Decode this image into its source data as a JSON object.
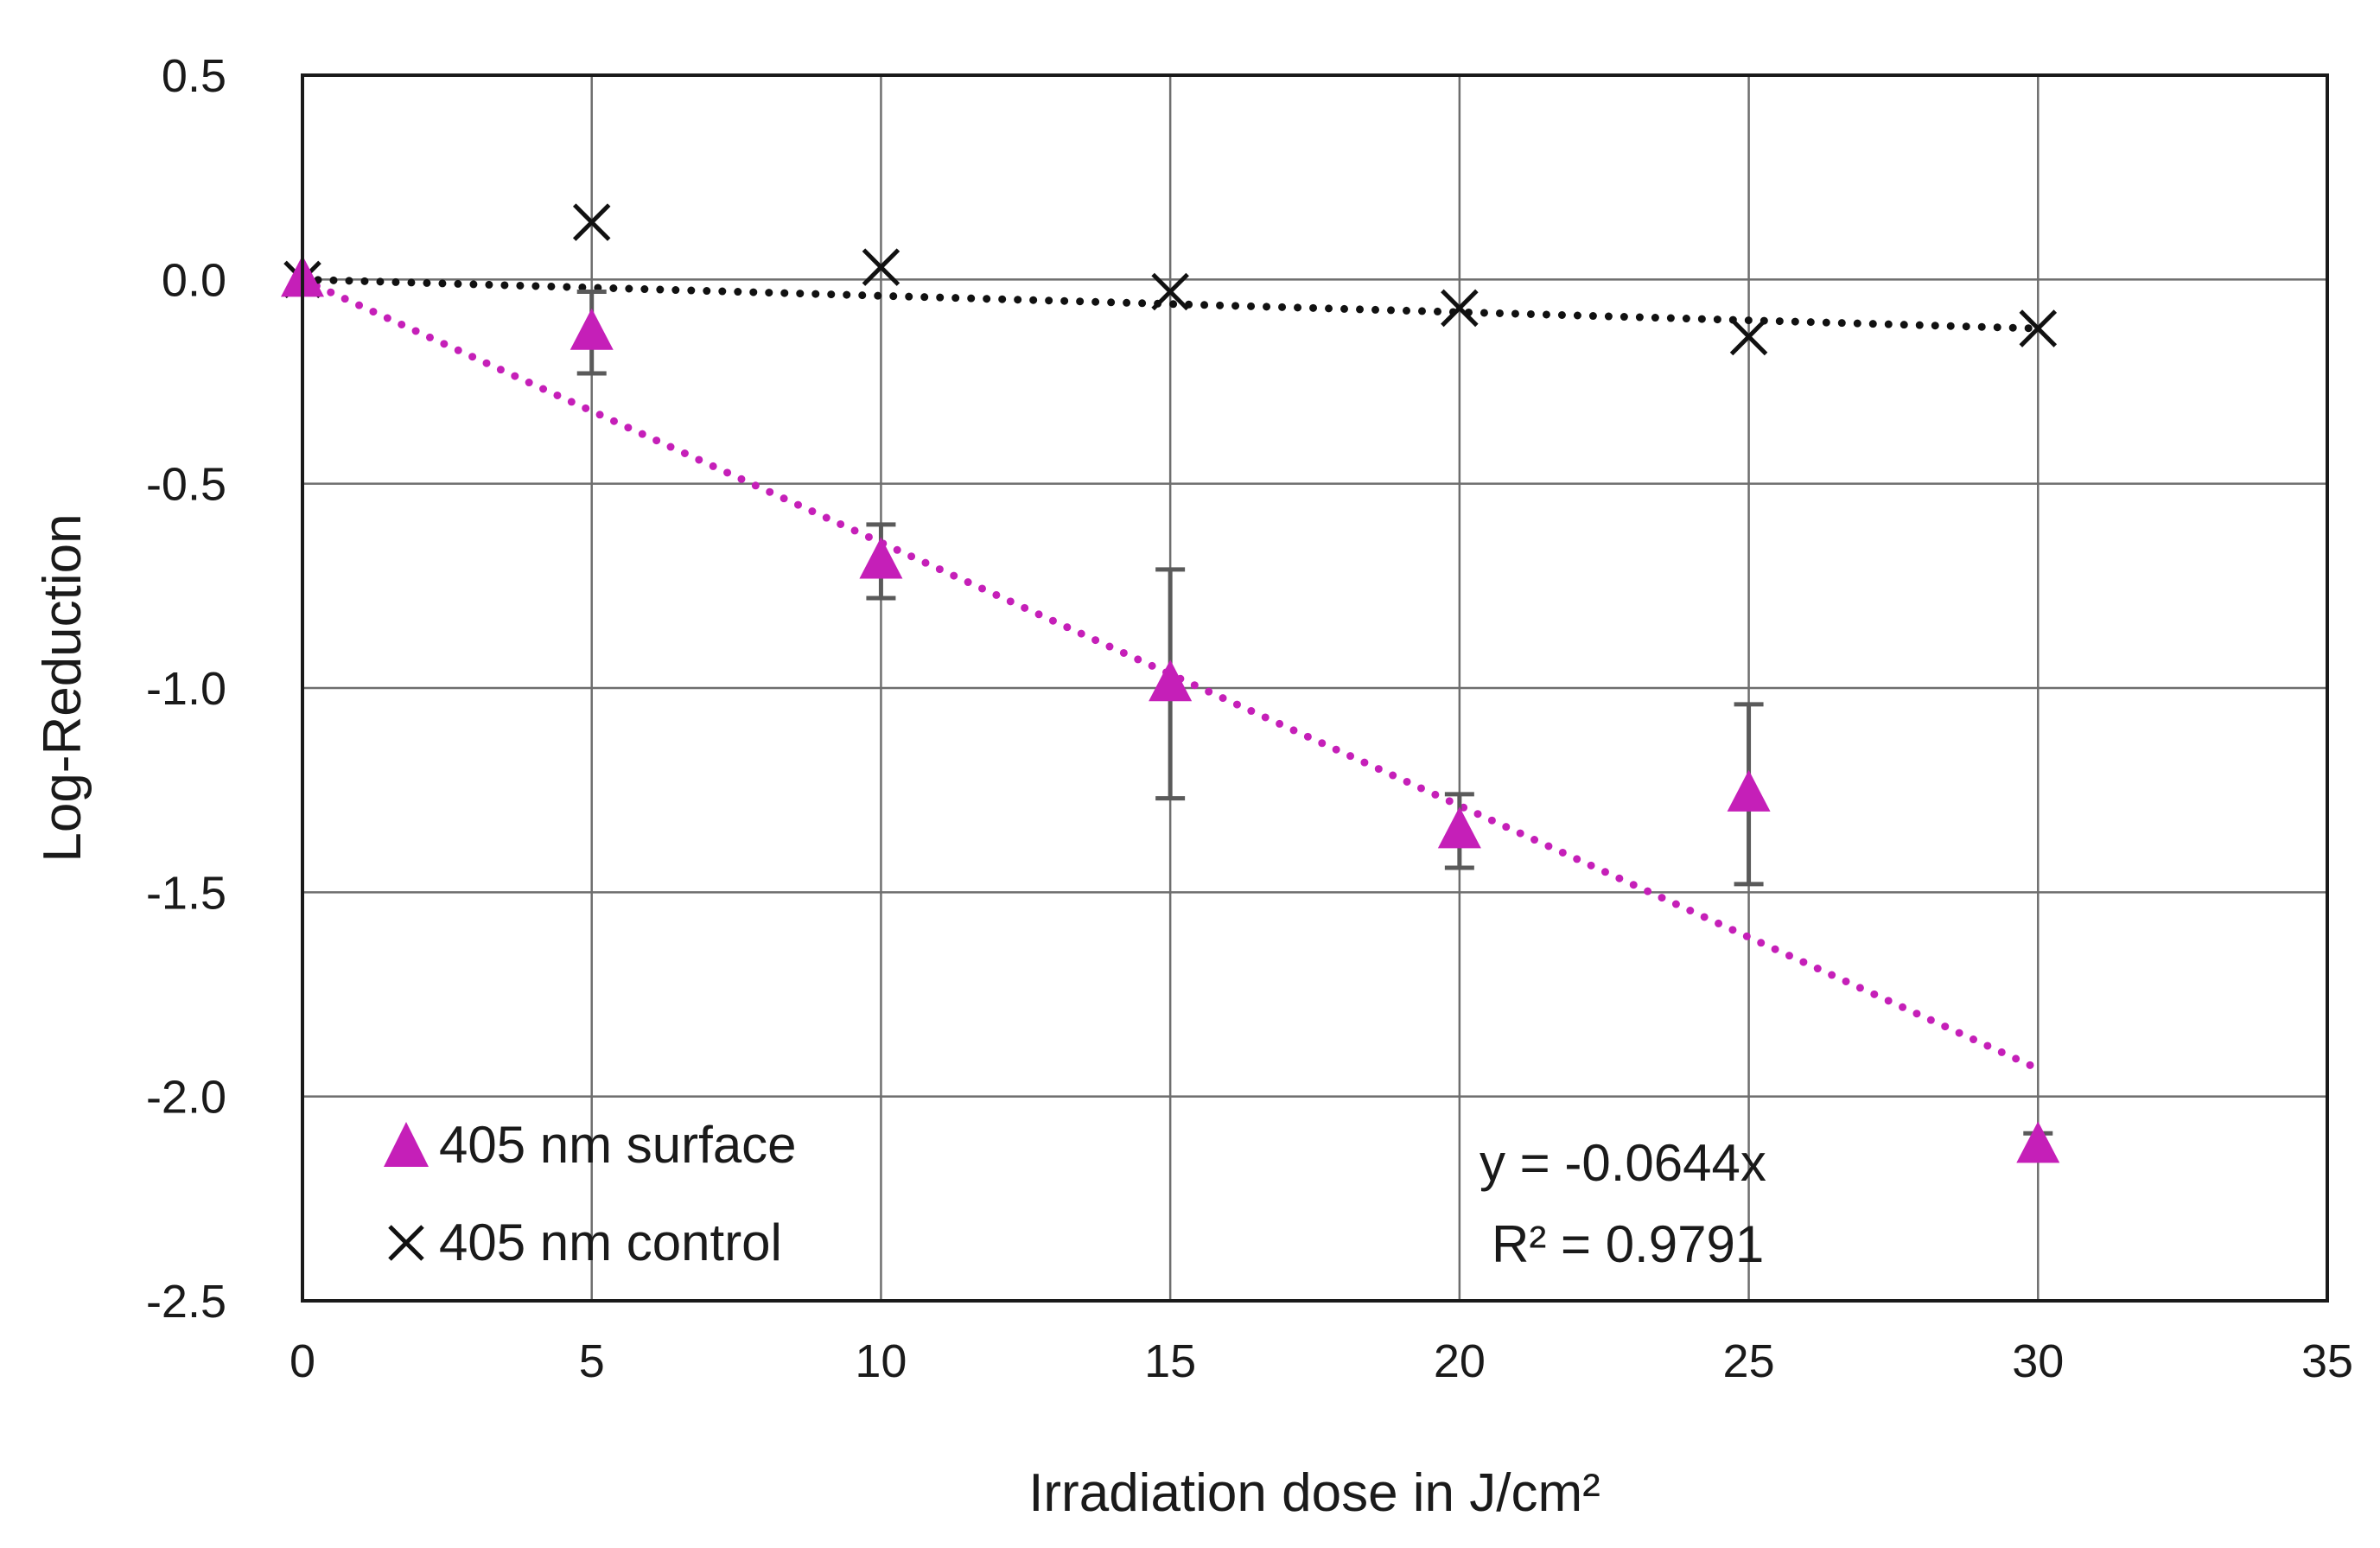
{
  "chart_data": {
    "type": "scatter",
    "title": "",
    "xlabel": "Irradiation dose in J/cm²",
    "ylabel": "Log-Reduction",
    "xlim": [
      0,
      35
    ],
    "ylim": [
      -2.5,
      0.5
    ],
    "xticks": [
      0,
      5,
      10,
      15,
      20,
      25,
      30,
      35
    ],
    "xtick_labels": [
      "0",
      "5",
      "10",
      "15",
      "20",
      "25",
      "30",
      "35"
    ],
    "yticks": [
      0.5,
      0.0,
      -0.5,
      -1.0,
      -1.5,
      -2.0,
      -2.5
    ],
    "ytick_labels": [
      "0.5",
      "0.0",
      "-0.5",
      "-1.0",
      "-1.5",
      "-2.0",
      "-2.5"
    ],
    "grid": true,
    "legend_position": "bottom-left",
    "series": [
      {
        "name": "405 nm surface",
        "marker": "triangle",
        "color": "#c51fb8",
        "x": [
          0,
          5,
          10,
          15,
          20,
          25,
          30
        ],
        "y": [
          0.0,
          -0.13,
          -0.69,
          -0.99,
          -1.35,
          -1.26,
          -2.12
        ],
        "error": [
          0,
          0.1,
          0.09,
          0.28,
          0.09,
          0.22,
          0.03
        ],
        "trendline": {
          "slope": -0.0644,
          "x_range": [
            0,
            30
          ],
          "style": "dotted"
        }
      },
      {
        "name": "405 nm control",
        "marker": "x",
        "color": "#111111",
        "x": [
          0,
          5,
          10,
          15,
          20,
          25,
          30
        ],
        "y": [
          0.0,
          0.14,
          0.03,
          -0.03,
          -0.07,
          -0.14,
          -0.12
        ],
        "trendline": {
          "slope": -0.004,
          "x_range": [
            0,
            30
          ],
          "style": "dotted"
        }
      }
    ],
    "annotations": {
      "equation": "y = -0.0644x",
      "r_squared": "R² = 0.9791"
    }
  }
}
